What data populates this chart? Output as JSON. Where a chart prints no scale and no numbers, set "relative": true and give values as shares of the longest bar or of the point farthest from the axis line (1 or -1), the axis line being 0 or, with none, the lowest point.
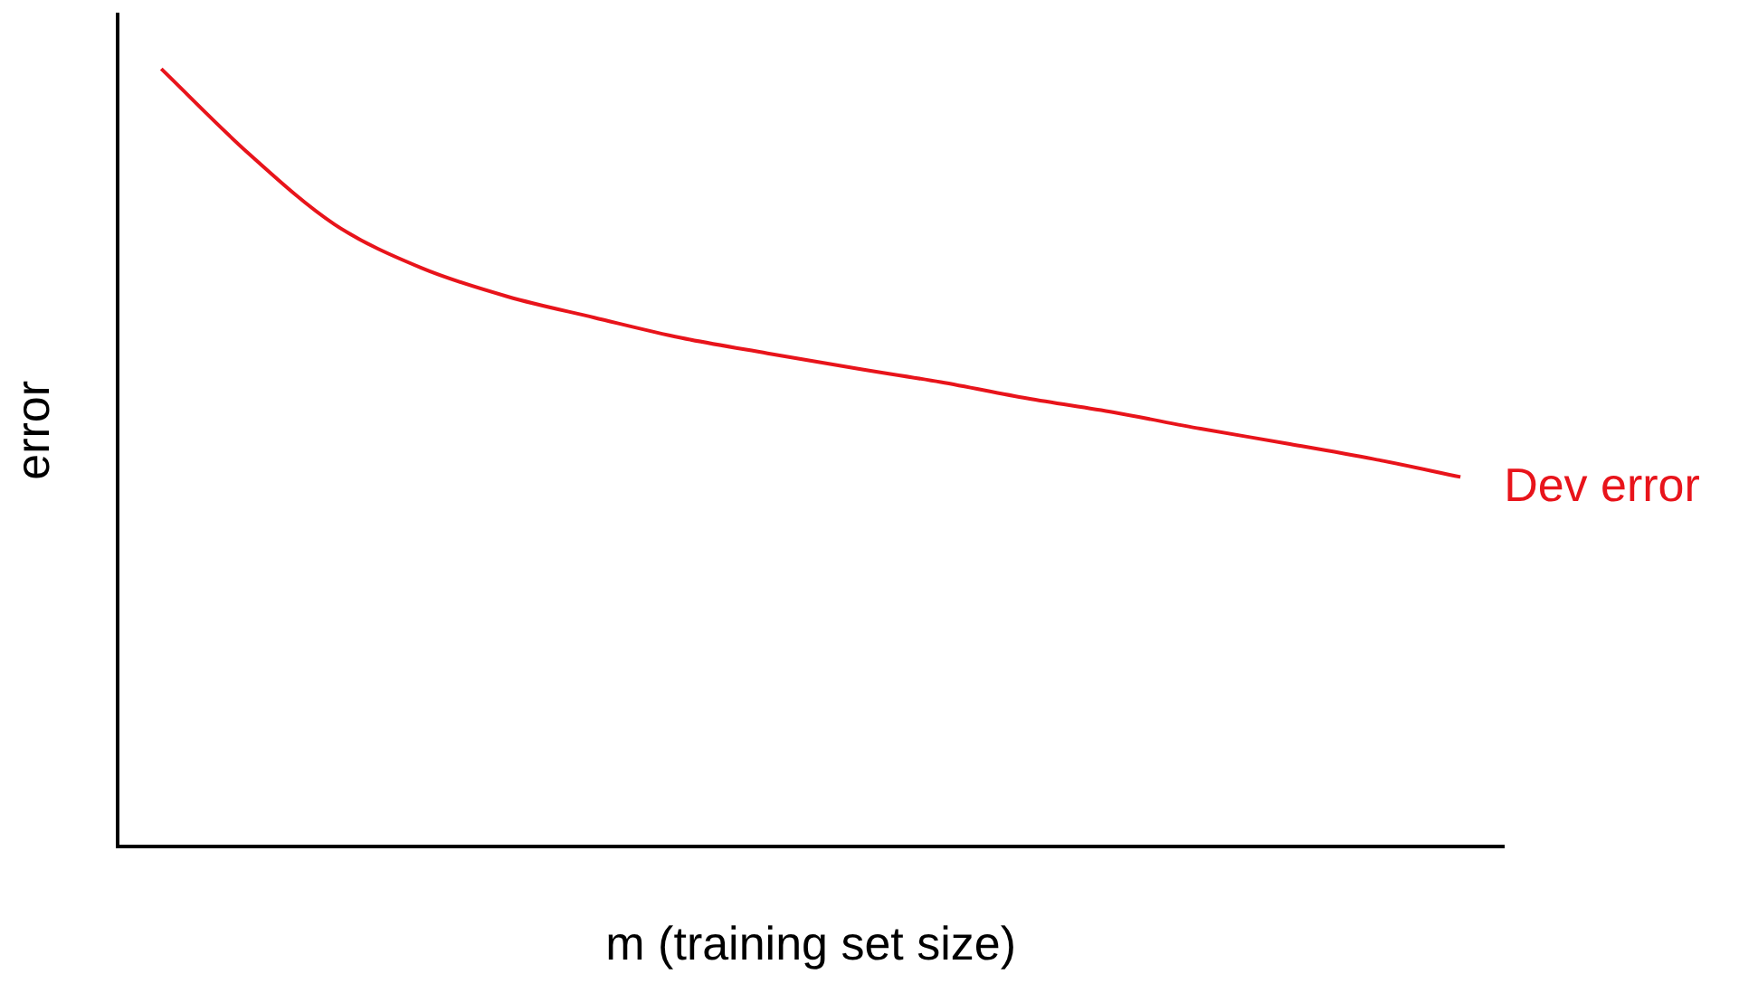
{
  "chart_data": {
    "type": "line",
    "relative": true,
    "xlabel": "m (training set size)",
    "ylabel": "error",
    "categories": [
      null,
      null,
      null,
      null,
      null,
      null,
      null,
      null,
      null,
      null,
      null,
      null,
      null,
      null,
      null,
      null
    ],
    "series": [
      {
        "name": "Dev error",
        "color": "#e8141b",
        "values": [
          1,
          0.892,
          0.8,
          0.744,
          0.707,
          0.68,
          0.654,
          0.634,
          0.615,
          0.597,
          0.576,
          0.558,
          0.537,
          0.518,
          0.498,
          0.475
        ]
      }
    ],
    "grid": false,
    "legend": false,
    "marker": "none",
    "line_style": "solid"
  }
}
